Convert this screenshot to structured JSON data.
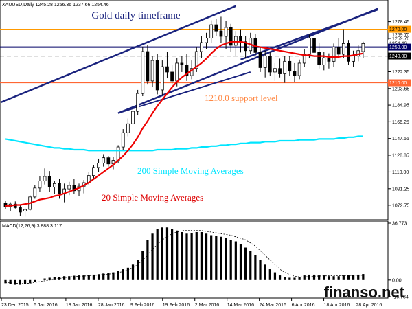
{
  "chart_data": [
    {
      "type": "candlestick",
      "symbol_header": "XAUUSD,Daily  1245.28 1256.36 1237.66 1254.46",
      "title": "Gold daily timeframe",
      "y_ticks": [
        1072.75,
        1091.25,
        1110.0,
        1128.85,
        1147.55,
        1166.25,
        1184.95,
        1203.65,
        1222.35,
        1241.05,
        1259.7,
        1278.45
      ],
      "x_ticks": [
        "23 Dec 2015",
        "6 Jan 2016",
        "18 Jan 2016",
        "28 Jan 2016",
        "9 Feb 2016",
        "19 Feb 2016",
        "2 Mar 2016",
        "14 Mar 2016",
        "24 Mar 2016",
        "6 Apr 2016",
        "18 Apr 2016",
        "28 Apr 2016"
      ],
      "ylim": [
        1058,
        1292
      ],
      "candles": [
        {
          "o": 1075,
          "h": 1078,
          "l": 1068,
          "c": 1071
        },
        {
          "o": 1071,
          "h": 1076,
          "l": 1066,
          "c": 1074
        },
        {
          "o": 1074,
          "h": 1077,
          "l": 1069,
          "c": 1070
        },
        {
          "o": 1070,
          "h": 1073,
          "l": 1061,
          "c": 1065
        },
        {
          "o": 1066,
          "h": 1070,
          "l": 1060,
          "c": 1068
        },
        {
          "o": 1068,
          "h": 1084,
          "l": 1066,
          "c": 1082
        },
        {
          "o": 1082,
          "h": 1095,
          "l": 1080,
          "c": 1092
        },
        {
          "o": 1092,
          "h": 1105,
          "l": 1088,
          "c": 1100
        },
        {
          "o": 1100,
          "h": 1114,
          "l": 1096,
          "c": 1105
        },
        {
          "o": 1105,
          "h": 1111,
          "l": 1088,
          "c": 1093
        },
        {
          "o": 1093,
          "h": 1100,
          "l": 1085,
          "c": 1097
        },
        {
          "o": 1097,
          "h": 1102,
          "l": 1080,
          "c": 1086
        },
        {
          "o": 1086,
          "h": 1097,
          "l": 1076,
          "c": 1091
        },
        {
          "o": 1091,
          "h": 1099,
          "l": 1084,
          "c": 1095
        },
        {
          "o": 1095,
          "h": 1102,
          "l": 1085,
          "c": 1089
        },
        {
          "o": 1089,
          "h": 1097,
          "l": 1083,
          "c": 1094
        },
        {
          "o": 1094,
          "h": 1101,
          "l": 1086,
          "c": 1098
        },
        {
          "o": 1098,
          "h": 1110,
          "l": 1095,
          "c": 1106
        },
        {
          "o": 1106,
          "h": 1118,
          "l": 1103,
          "c": 1115
        },
        {
          "o": 1115,
          "h": 1125,
          "l": 1110,
          "c": 1120
        },
        {
          "o": 1120,
          "h": 1130,
          "l": 1116,
          "c": 1126
        },
        {
          "o": 1126,
          "h": 1128,
          "l": 1116,
          "c": 1119
        },
        {
          "o": 1119,
          "h": 1127,
          "l": 1113,
          "c": 1123
        },
        {
          "o": 1123,
          "h": 1140,
          "l": 1120,
          "c": 1138
        },
        {
          "o": 1138,
          "h": 1158,
          "l": 1134,
          "c": 1154
        },
        {
          "o": 1154,
          "h": 1170,
          "l": 1150,
          "c": 1164
        },
        {
          "o": 1164,
          "h": 1182,
          "l": 1160,
          "c": 1178
        },
        {
          "o": 1178,
          "h": 1202,
          "l": 1174,
          "c": 1198
        },
        {
          "o": 1198,
          "h": 1250,
          "l": 1195,
          "c": 1245
        },
        {
          "o": 1245,
          "h": 1252,
          "l": 1208,
          "c": 1212
        },
        {
          "o": 1212,
          "h": 1240,
          "l": 1205,
          "c": 1235
        },
        {
          "o": 1235,
          "h": 1242,
          "l": 1197,
          "c": 1202
        },
        {
          "o": 1202,
          "h": 1235,
          "l": 1196,
          "c": 1228
        },
        {
          "o": 1228,
          "h": 1245,
          "l": 1215,
          "c": 1222
        },
        {
          "o": 1222,
          "h": 1230,
          "l": 1202,
          "c": 1212
        },
        {
          "o": 1212,
          "h": 1238,
          "l": 1206,
          "c": 1232
        },
        {
          "o": 1232,
          "h": 1240,
          "l": 1222,
          "c": 1230
        },
        {
          "o": 1230,
          "h": 1242,
          "l": 1212,
          "c": 1218
        },
        {
          "o": 1218,
          "h": 1235,
          "l": 1214,
          "c": 1226
        },
        {
          "o": 1226,
          "h": 1250,
          "l": 1222,
          "c": 1245
        },
        {
          "o": 1245,
          "h": 1262,
          "l": 1238,
          "c": 1255
        },
        {
          "o": 1255,
          "h": 1266,
          "l": 1248,
          "c": 1260
        },
        {
          "o": 1260,
          "h": 1280,
          "l": 1255,
          "c": 1275
        },
        {
          "o": 1275,
          "h": 1282,
          "l": 1262,
          "c": 1268
        },
        {
          "o": 1268,
          "h": 1284,
          "l": 1255,
          "c": 1262
        },
        {
          "o": 1262,
          "h": 1279,
          "l": 1248,
          "c": 1272
        },
        {
          "o": 1272,
          "h": 1276,
          "l": 1245,
          "c": 1252
        },
        {
          "o": 1252,
          "h": 1268,
          "l": 1240,
          "c": 1262
        },
        {
          "o": 1262,
          "h": 1270,
          "l": 1244,
          "c": 1256
        },
        {
          "o": 1256,
          "h": 1262,
          "l": 1238,
          "c": 1246
        },
        {
          "o": 1246,
          "h": 1266,
          "l": 1242,
          "c": 1260
        },
        {
          "o": 1260,
          "h": 1265,
          "l": 1240,
          "c": 1244
        },
        {
          "o": 1244,
          "h": 1250,
          "l": 1222,
          "c": 1227
        },
        {
          "o": 1227,
          "h": 1246,
          "l": 1216,
          "c": 1240
        },
        {
          "o": 1240,
          "h": 1244,
          "l": 1218,
          "c": 1222
        },
        {
          "o": 1222,
          "h": 1232,
          "l": 1212,
          "c": 1226
        },
        {
          "o": 1226,
          "h": 1237,
          "l": 1216,
          "c": 1220
        },
        {
          "o": 1220,
          "h": 1240,
          "l": 1210,
          "c": 1234
        },
        {
          "o": 1234,
          "h": 1240,
          "l": 1218,
          "c": 1223
        },
        {
          "o": 1223,
          "h": 1232,
          "l": 1211,
          "c": 1218
        },
        {
          "o": 1218,
          "h": 1236,
          "l": 1214,
          "c": 1232
        },
        {
          "o": 1232,
          "h": 1248,
          "l": 1228,
          "c": 1242
        },
        {
          "o": 1242,
          "h": 1264,
          "l": 1238,
          "c": 1260
        },
        {
          "o": 1260,
          "h": 1262,
          "l": 1238,
          "c": 1244
        },
        {
          "o": 1244,
          "h": 1255,
          "l": 1226,
          "c": 1230
        },
        {
          "o": 1230,
          "h": 1245,
          "l": 1224,
          "c": 1238
        },
        {
          "o": 1238,
          "h": 1243,
          "l": 1226,
          "c": 1234
        },
        {
          "o": 1234,
          "h": 1254,
          "l": 1228,
          "c": 1250
        },
        {
          "o": 1250,
          "h": 1260,
          "l": 1238,
          "c": 1242
        },
        {
          "o": 1242,
          "h": 1270,
          "l": 1238,
          "c": 1254
        },
        {
          "o": 1254,
          "h": 1258,
          "l": 1230,
          "c": 1234
        },
        {
          "o": 1234,
          "h": 1246,
          "l": 1228,
          "c": 1240
        },
        {
          "o": 1240,
          "h": 1252,
          "l": 1234,
          "c": 1246
        },
        {
          "o": 1245,
          "h": 1256,
          "l": 1238,
          "c": 1254
        }
      ],
      "sma20": [
        1072,
        1072,
        1073,
        1073,
        1074,
        1075,
        1077,
        1079,
        1080,
        1081,
        1083,
        1084,
        1086,
        1088,
        1090,
        1092,
        1095,
        1098,
        1102,
        1106,
        1110,
        1114,
        1118,
        1123,
        1128,
        1134,
        1141,
        1149,
        1159,
        1167,
        1176,
        1184,
        1191,
        1198,
        1205,
        1211,
        1216,
        1220,
        1224,
        1228,
        1232,
        1237,
        1243,
        1248,
        1252,
        1254,
        1256,
        1256,
        1256,
        1255,
        1253,
        1251,
        1250,
        1249,
        1248,
        1247,
        1246,
        1245,
        1244,
        1243,
        1242,
        1241,
        1241,
        1240,
        1240,
        1240,
        1239,
        1239,
        1239,
        1240,
        1240,
        1241,
        1242,
        1243
      ],
      "sma200": [
        1147,
        1146,
        1145,
        1144,
        1143,
        1142,
        1141,
        1140,
        1139,
        1138,
        1137,
        1137,
        1136,
        1136,
        1135,
        1135,
        1135,
        1134,
        1134,
        1134,
        1134,
        1134,
        1134,
        1134,
        1134,
        1134,
        1134,
        1134,
        1134,
        1134,
        1134,
        1135,
        1135,
        1135,
        1135,
        1136,
        1136,
        1136,
        1137,
        1137,
        1138,
        1138,
        1139,
        1139,
        1140,
        1140,
        1141,
        1141,
        1142,
        1142,
        1143,
        1143,
        1143,
        1144,
        1144,
        1144,
        1145,
        1145,
        1145,
        1145,
        1146,
        1146,
        1146,
        1146,
        1147,
        1147,
        1147,
        1147,
        1148,
        1148,
        1149,
        1149,
        1150,
        1150
      ],
      "levels": [
        {
          "value": 1270.0,
          "label": "1270.00",
          "color": "#ff9900",
          "style": "solid"
        },
        {
          "value": 1250.0,
          "label": "1250.00",
          "color": "#000066",
          "style": "solid"
        },
        {
          "value": 1240.0,
          "label": "1240.00",
          "color": "#000000",
          "style": "dashed"
        },
        {
          "value": 1210.0,
          "label": "1210.00",
          "color": "#ff6633",
          "style": "solid"
        }
      ],
      "current_price": {
        "value": 1254.46,
        "label": "1254.46"
      },
      "price_tag_1259": "1259.70",
      "annotations": {
        "support": "1210.0 support level",
        "sma200_label": "200 Simple Moving Averages",
        "sma20_label": "20 Simple Moving Averages"
      },
      "colors": {
        "sma20": "#ee0000",
        "sma200": "#00e5ff",
        "channel": "#1a237e",
        "support_text": "#ff8844",
        "sma200_text": "#00e5ff",
        "sma20_text": "#dd0000"
      }
    },
    {
      "type": "bar",
      "header": "MACD(12,26,9) 3.888 3.117",
      "y_ticks": [
        36.773,
        0.0,
        -10.734
      ],
      "ylim": [
        -10.734,
        36.773
      ],
      "histogram": [
        -2,
        -2.5,
        -3,
        -3,
        -2.5,
        -2,
        -1,
        0,
        1,
        1.5,
        2,
        2,
        2.5,
        2.5,
        2.8,
        3,
        3,
        3.2,
        3.5,
        3.8,
        4.2,
        4.6,
        5,
        6,
        7,
        8,
        10,
        13,
        19,
        26,
        30,
        33,
        34,
        34,
        33,
        32,
        31,
        30,
        30.5,
        31,
        31,
        30,
        29,
        28.5,
        28,
        27,
        26,
        25,
        23,
        21,
        19,
        16,
        13,
        10,
        7,
        5,
        3,
        2,
        1.5,
        1.5,
        2,
        3,
        3.5,
        3.5,
        3,
        3,
        2.5,
        2.5,
        2.5,
        3,
        3,
        3.2,
        3.5,
        3.888
      ],
      "signal": [
        -1.5,
        -1.8,
        -2,
        -2.2,
        -2.2,
        -2,
        -1.5,
        -1,
        -0.5,
        0,
        0.5,
        1,
        1.5,
        2,
        2.2,
        2.4,
        2.6,
        2.8,
        3,
        3.2,
        3.5,
        3.8,
        4.2,
        4.8,
        5.5,
        6.5,
        8,
        10,
        13,
        16,
        20,
        23,
        26,
        28,
        30,
        31,
        32,
        32,
        32,
        32,
        32,
        31.5,
        31,
        30.5,
        30,
        29.5,
        29,
        28,
        27,
        26,
        24,
        22,
        19,
        16,
        13,
        10,
        7,
        5,
        3.5,
        2.5,
        2,
        2,
        2.2,
        2.5,
        2.6,
        2.7,
        2.7,
        2.8,
        2.8,
        2.9,
        3,
        3,
        3.1,
        3.117
      ]
    }
  ],
  "watermark": "finanso.net"
}
